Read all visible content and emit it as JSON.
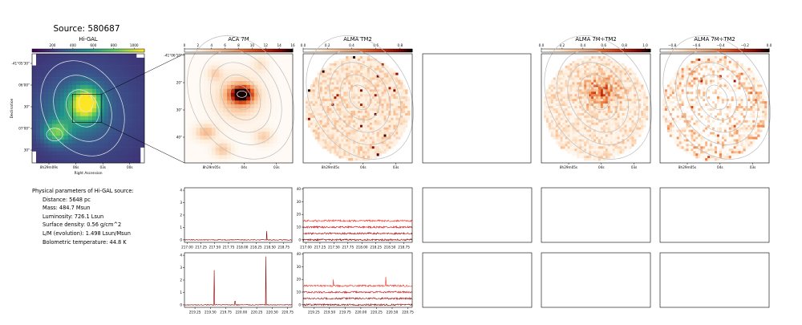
{
  "figure": {
    "source_title": "Source: 580687",
    "colors": {
      "axis": "#000000",
      "spectrum_line": "#8b0000",
      "contour": "#bdbdbd",
      "contour_hi": "#ffffff"
    }
  },
  "params": {
    "header": "Physical parameters of Hi-GAL source:",
    "lines": [
      "Distance: 5648 pc",
      "Mass: 484.7 Msun",
      "Luminosity: 726.1 Lsun",
      "Surface density: 0.56 g/cm^2",
      "L/M (evolution): 1.498 Lsun/Msun",
      "Bolometric temperature: 44.8 K"
    ]
  },
  "chart_data": [
    {
      "type": "heatmap",
      "title": "Hi-GAL",
      "colormap": "viridis",
      "colorbar_ticks": [
        "200",
        "400",
        "600",
        "800",
        "1000"
      ],
      "colorbar_range": [
        0,
        1100
      ],
      "xlabel": "Right Ascension",
      "ylabel": "Declination",
      "xticks": [
        "8h29m09s",
        "06s",
        "03s",
        "00s"
      ],
      "yticks": [
        "-41°05'30\"",
        "06'00\"",
        "30\"",
        "07'00\"",
        "30\""
      ]
    },
    {
      "type": "heatmap",
      "title": "ACA 7M",
      "colormap": "gist_heat_r",
      "colorbar_ticks": [
        "0",
        "2",
        "4",
        "6",
        "8",
        "10",
        "12",
        "14",
        "16"
      ],
      "colorbar_range": [
        0,
        16
      ],
      "xticks": [
        "8h29m05s",
        "04s",
        "03s"
      ],
      "yticks": [
        "-41°06'10\"",
        "20\"",
        "30\"",
        "40\""
      ]
    },
    {
      "type": "heatmap",
      "title": "ALMA TM2",
      "colormap": "gist_heat_r",
      "colorbar_ticks": [
        "0.0",
        "0.2",
        "0.4",
        "0.6",
        "0.8"
      ],
      "colorbar_range": [
        0,
        0.9
      ],
      "xticks": [
        "8h29m05s",
        "04s",
        "03s"
      ]
    },
    {
      "type": "heatmap",
      "title": "ALMA 7M+TM2",
      "colormap": "gist_heat_r",
      "colorbar_ticks": [
        "0.0",
        "0.2",
        "0.4",
        "0.6",
        "0.8",
        "1.0"
      ],
      "colorbar_range": [
        0,
        1.05
      ],
      "xticks": [
        "8h29m05s",
        "04s",
        "03s"
      ]
    },
    {
      "type": "heatmap",
      "title": "ALMA 7M+TM2",
      "colormap": "gist_heat_r",
      "colorbar_ticks": [
        "−0.8",
        "−0.6",
        "−0.4",
        "−0.2",
        "0.0"
      ],
      "colorbar_range": [
        -0.9,
        0.0
      ],
      "xticks": [
        "8h29m05s",
        "04s",
        "03s"
      ]
    },
    {
      "type": "line",
      "panel": "spectrum-aca-1",
      "xlim": [
        216.95,
        218.9
      ],
      "ylim": [
        -0.2,
        4.2
      ],
      "xticks": [
        "217.00",
        "217.25",
        "217.50",
        "217.75",
        "218.00",
        "218.25",
        "218.50",
        "218.75"
      ],
      "yticks": [
        "0",
        "1",
        "2",
        "3",
        "4"
      ],
      "series": [
        {
          "baseline": 0.0,
          "peaks": [
            {
              "x": 218.44,
              "y": 0.72
            }
          ]
        }
      ]
    },
    {
      "type": "line",
      "panel": "spectrum-tm2-1",
      "xlim": [
        216.95,
        218.9
      ],
      "ylim": [
        -2,
        41
      ],
      "xticks": [
        "217.00",
        "217.25",
        "217.50",
        "217.75",
        "218.00",
        "218.25",
        "218.50",
        "218.75"
      ],
      "yticks": [
        "0",
        "10",
        "20",
        "30",
        "40"
      ],
      "series": [
        {
          "baseline": 0,
          "color": "#8b0000"
        },
        {
          "baseline": 5,
          "color": "#a50f15"
        },
        {
          "baseline": 10,
          "color": "#cb181d"
        },
        {
          "baseline": 15,
          "color": "#ef3b2c"
        }
      ]
    },
    {
      "type": "line",
      "panel": "spectrum-aca-2",
      "xlim": [
        219.08,
        220.82
      ],
      "ylim": [
        -0.2,
        4.2
      ],
      "xticks": [
        "219.25",
        "219.50",
        "219.75",
        "220.00",
        "220.25",
        "220.50",
        "220.75"
      ],
      "yticks": [
        "0",
        "1",
        "2",
        "3",
        "4"
      ],
      "series": [
        {
          "baseline": 0.0,
          "peaks": [
            {
              "x": 219.56,
              "y": 2.8
            },
            {
              "x": 220.4,
              "y": 3.9
            },
            {
              "x": 219.9,
              "y": 0.3
            }
          ]
        }
      ]
    },
    {
      "type": "line",
      "panel": "spectrum-tm2-2",
      "xlim": [
        219.08,
        220.82
      ],
      "ylim": [
        -2,
        41
      ],
      "xticks": [
        "219.25",
        "219.50",
        "219.75",
        "220.00",
        "220.25",
        "220.50",
        "220.75"
      ],
      "yticks": [
        "0",
        "10",
        "20",
        "30",
        "40"
      ],
      "series": [
        {
          "baseline": 0,
          "color": "#8b0000"
        },
        {
          "baseline": 5,
          "color": "#a50f15"
        },
        {
          "baseline": 10,
          "color": "#cb181d"
        },
        {
          "baseline": 15,
          "color": "#ef3b2c",
          "peaks": [
            {
              "x": 219.56,
              "y": 20
            },
            {
              "x": 220.4,
              "y": 22
            }
          ]
        }
      ]
    }
  ]
}
